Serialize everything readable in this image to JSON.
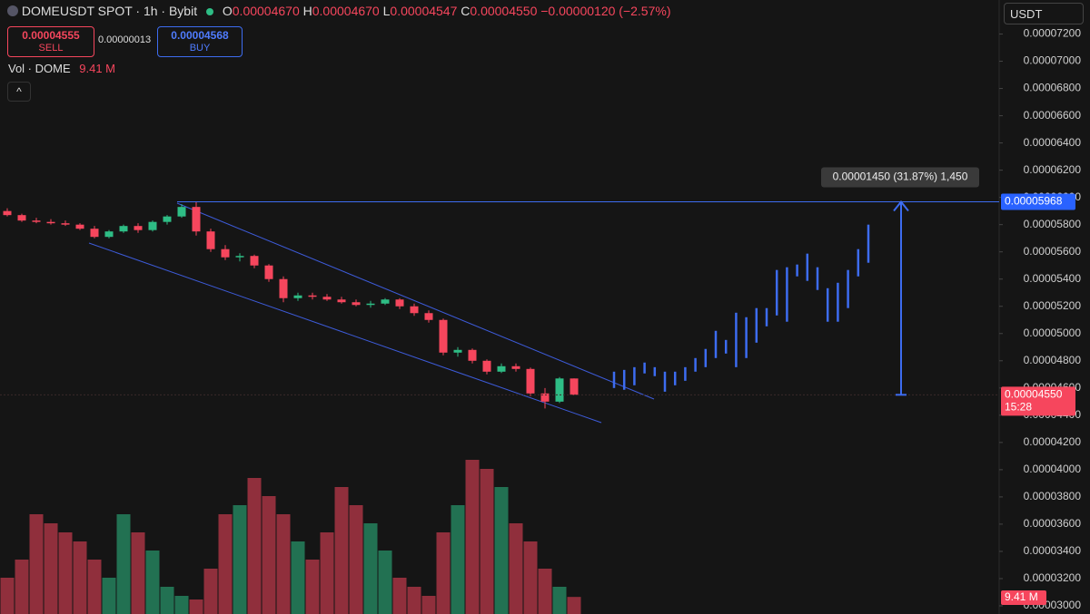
{
  "header": {
    "symbol": "DOMEUSDT SPOT · 1h · Bybit",
    "o_label": "O",
    "o": "0.00004670",
    "h_label": "H",
    "h": "0.00004670",
    "l_label": "L",
    "l": "0.00004547",
    "c_label": "C",
    "c": "0.00004550",
    "change": "−0.00000120 (−2.57%)",
    "sell_price": "0.00004555",
    "sell": "SELL",
    "spread": "0.00000013",
    "buy_price": "0.00004568",
    "buy": "BUY",
    "vol_label": "Vol · DOME",
    "vol_value": "9.41 M",
    "currency": "USDT"
  },
  "chart_data": {
    "type": "candlestick",
    "up_color": "#2ebd85",
    "down_color": "#f6465d",
    "projection_color": "#3d6cf0",
    "ylim": [
      2.94e-05,
      7.45e-05
    ],
    "yticks": [
      {
        "value": 7.2e-05,
        "label": "0.00007200"
      },
      {
        "value": 7e-05,
        "label": "0.00007000"
      },
      {
        "value": 6.8e-05,
        "label": "0.00006800"
      },
      {
        "value": 6.6e-05,
        "label": "0.00006600"
      },
      {
        "value": 6.4e-05,
        "label": "0.00006400"
      },
      {
        "value": 6.2e-05,
        "label": "0.00006200"
      },
      {
        "value": 6e-05,
        "label": "0.00006000"
      },
      {
        "value": 5.8e-05,
        "label": "0.00005800"
      },
      {
        "value": 5.6e-05,
        "label": "0.00005600"
      },
      {
        "value": 5.4e-05,
        "label": "0.00005400"
      },
      {
        "value": 5.2e-05,
        "label": "0.00005200"
      },
      {
        "value": 5e-05,
        "label": "0.00005000"
      },
      {
        "value": 4.8e-05,
        "label": "0.00004800"
      },
      {
        "value": 4.6e-05,
        "label": "0.00004600"
      },
      {
        "value": 4.4e-05,
        "label": "0.00004400"
      },
      {
        "value": 4.2e-05,
        "label": "0.00004200"
      },
      {
        "value": 4e-05,
        "label": "0.00004000"
      },
      {
        "value": 3.8e-05,
        "label": "0.00003800"
      },
      {
        "value": 3.6e-05,
        "label": "0.00003600"
      },
      {
        "value": 3.4e-05,
        "label": "0.00003400"
      },
      {
        "value": 3.2e-05,
        "label": "0.00003200"
      },
      {
        "value": 3e-05,
        "label": "0.00003000"
      }
    ],
    "open": [
      5.9e-05,
      5.87e-05,
      5.83e-05,
      5.82e-05,
      5.81e-05,
      5.8e-05,
      5.77e-05,
      5.71e-05,
      5.75e-05,
      5.79e-05,
      5.76e-05,
      5.82e-05,
      5.86e-05,
      5.93e-05,
      5.75e-05,
      5.62e-05,
      5.56e-05,
      5.57e-05,
      5.5e-05,
      5.4e-05,
      5.26e-05,
      5.28e-05,
      5.27e-05,
      5.25e-05,
      5.23e-05,
      5.21e-05,
      5.22e-05,
      5.25e-05,
      5.2e-05,
      5.15e-05,
      5.1e-05,
      4.86e-05,
      4.88e-05,
      4.8e-05,
      4.72e-05,
      4.76e-05,
      4.74e-05,
      4.56e-05,
      4.5e-05,
      4.67e-05
    ],
    "high": [
      5.92e-05,
      5.88e-05,
      5.85e-05,
      5.84e-05,
      5.83e-05,
      5.81e-05,
      5.79e-05,
      5.76e-05,
      5.8e-05,
      5.81e-05,
      5.83e-05,
      5.87e-05,
      5.95e-05,
      5.968e-05,
      5.77e-05,
      5.65e-05,
      5.59e-05,
      5.58e-05,
      5.51e-05,
      5.42e-05,
      5.3e-05,
      5.3e-05,
      5.29e-05,
      5.27e-05,
      5.25e-05,
      5.24e-05,
      5.26e-05,
      5.26e-05,
      5.22e-05,
      5.17e-05,
      5.11e-05,
      4.9e-05,
      4.89e-05,
      4.81e-05,
      4.78e-05,
      4.78e-05,
      4.75e-05,
      4.6e-05,
      4.68e-05,
      4.67e-05
    ],
    "low": [
      5.86e-05,
      5.82e-05,
      5.81e-05,
      5.8e-05,
      5.79e-05,
      5.76e-05,
      5.7e-05,
      5.7e-05,
      5.74e-05,
      5.74e-05,
      5.75e-05,
      5.8e-05,
      5.85e-05,
      5.72e-05,
      5.6e-05,
      5.54e-05,
      5.53e-05,
      5.48e-05,
      5.38e-05,
      5.23e-05,
      5.24e-05,
      5.25e-05,
      5.24e-05,
      5.22e-05,
      5.2e-05,
      5.19e-05,
      5.21e-05,
      5.18e-05,
      5.13e-05,
      5.08e-05,
      4.84e-05,
      4.83e-05,
      4.78e-05,
      4.7e-05,
      4.71e-05,
      4.72e-05,
      4.54e-05,
      4.45e-05,
      4.49e-05,
      4.547e-05
    ],
    "close": [
      5.87e-05,
      5.83e-05,
      5.82e-05,
      5.81e-05,
      5.8e-05,
      5.77e-05,
      5.71e-05,
      5.75e-05,
      5.79e-05,
      5.76e-05,
      5.82e-05,
      5.86e-05,
      5.93e-05,
      5.75e-05,
      5.62e-05,
      5.56e-05,
      5.57e-05,
      5.5e-05,
      5.4e-05,
      5.26e-05,
      5.28e-05,
      5.27e-05,
      5.25e-05,
      5.23e-05,
      5.21e-05,
      5.22e-05,
      5.25e-05,
      5.2e-05,
      5.15e-05,
      5.1e-05,
      4.86e-05,
      4.88e-05,
      4.8e-05,
      4.72e-05,
      4.76e-05,
      4.74e-05,
      4.56e-05,
      4.5e-05,
      4.67e-05,
      4.55e-05
    ],
    "volume": [
      20,
      30,
      55,
      50,
      45,
      40,
      30,
      20,
      55,
      45,
      35,
      15,
      10,
      8,
      25,
      55,
      60,
      75,
      65,
      55,
      40,
      30,
      45,
      70,
      60,
      50,
      35,
      20,
      15,
      10,
      45,
      60,
      85,
      80,
      70,
      50,
      40,
      25,
      15,
      9.41
    ],
    "projection": {
      "low": [
        4.6e-05,
        4.587e-05,
        4.62e-05,
        4.707e-05,
        4.687e-05,
        4.573e-05,
        4.62e-05,
        4.653e-05,
        4.72e-05,
        4.753e-05,
        4.82e-05,
        4.853e-05,
        4.753e-05,
        4.82e-05,
        4.933e-05,
        5.053e-05,
        5.133e-05,
        5.087e-05,
        5.42e-05,
        5.387e-05,
        5.32e-05,
        5.087e-05,
        5.087e-05,
        5.187e-05,
        5.42e-05,
        5.52e-05
      ],
      "high": [
        4.72e-05,
        4.733e-05,
        4.753e-05,
        4.787e-05,
        4.753e-05,
        4.72e-05,
        4.72e-05,
        4.753e-05,
        4.82e-05,
        4.887e-05,
        5.02e-05,
        4.953e-05,
        5.153e-05,
        5.12e-05,
        5.187e-05,
        5.187e-05,
        5.467e-05,
        5.487e-05,
        5.507e-05,
        5.587e-05,
        5.487e-05,
        5.333e-05,
        5.373e-05,
        5.467e-05,
        5.62e-05,
        5.8e-05
      ]
    },
    "level": {
      "value": 5.968e-05,
      "label": "0.00005968"
    },
    "last_price": {
      "value": 4.55e-05,
      "label": "0.00004550"
    },
    "countdown": "15:28",
    "measure_label": "0.00001450 (31.87%) 1,450",
    "volume_badge": "9.41 M"
  }
}
